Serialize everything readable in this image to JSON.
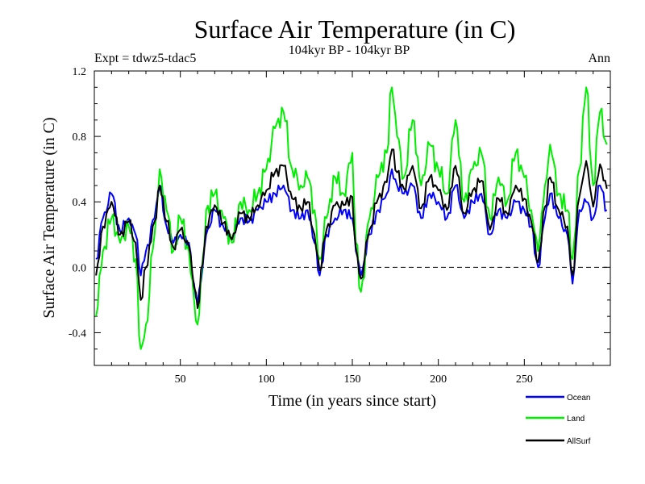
{
  "chart_data": {
    "type": "line",
    "title": "Surface Air Temperature (in C)",
    "subtitle": "104kyr BP - 104kyr BP",
    "expt_label": "Expt = tdwz5-tdac5",
    "season_label": "Ann",
    "xlabel": "Time (in years since start)",
    "ylabel": "Surface Air Temperature (in C)",
    "xlim": [
      0,
      300
    ],
    "ylim": [
      -0.6,
      1.2
    ],
    "xticks": [
      50,
      100,
      150,
      200,
      250
    ],
    "xtick_labels": [
      "50",
      "100",
      "150",
      "200",
      "250"
    ],
    "yticks": [
      -0.4,
      0.0,
      0.4,
      0.8,
      1.2
    ],
    "ytick_labels": [
      "-0.4",
      "0.0",
      "0.4",
      "0.8",
      "1.2"
    ],
    "reference_line": 0.0,
    "series": [
      {
        "name": "Ocean",
        "color": "#0000ff",
        "x": [
          1,
          5,
          10,
          15,
          20,
          24,
          27,
          30,
          35,
          38,
          42,
          46,
          50,
          55,
          58,
          60,
          63,
          65,
          70,
          75,
          80,
          85,
          90,
          95,
          100,
          105,
          110,
          115,
          120,
          124,
          128,
          131,
          135,
          140,
          145,
          150,
          152,
          155,
          160,
          165,
          170,
          173,
          176,
          180,
          185,
          190,
          195,
          200,
          205,
          210,
          215,
          220,
          225,
          230,
          235,
          240,
          245,
          250,
          254,
          258,
          262,
          265,
          270,
          275,
          278,
          282,
          286,
          290,
          294,
          298
        ],
        "values": [
          0.05,
          0.3,
          0.45,
          0.22,
          0.3,
          0.2,
          -0.05,
          0.1,
          0.3,
          0.5,
          0.25,
          0.15,
          0.2,
          0.15,
          -0.1,
          -0.22,
          0.0,
          0.2,
          0.35,
          0.25,
          0.18,
          0.3,
          0.28,
          0.35,
          0.4,
          0.45,
          0.5,
          0.35,
          0.3,
          0.35,
          0.15,
          -0.05,
          0.2,
          0.3,
          0.35,
          0.3,
          0.1,
          -0.05,
          0.2,
          0.35,
          0.45,
          0.6,
          0.5,
          0.45,
          0.5,
          0.3,
          0.45,
          0.4,
          0.3,
          0.5,
          0.3,
          0.4,
          0.45,
          0.2,
          0.35,
          0.3,
          0.4,
          0.35,
          0.25,
          0.0,
          0.3,
          0.45,
          0.3,
          0.2,
          -0.1,
          0.35,
          0.4,
          0.3,
          0.5,
          0.35
        ]
      },
      {
        "name": "Land",
        "color": "#00ee00",
        "x": [
          1,
          5,
          10,
          15,
          20,
          24,
          27,
          30,
          35,
          38,
          42,
          46,
          50,
          55,
          58,
          60,
          63,
          65,
          70,
          75,
          80,
          85,
          90,
          95,
          100,
          105,
          110,
          115,
          120,
          124,
          128,
          131,
          135,
          140,
          145,
          150,
          152,
          155,
          160,
          165,
          170,
          173,
          176,
          180,
          185,
          190,
          195,
          200,
          205,
          210,
          215,
          220,
          225,
          230,
          235,
          240,
          245,
          250,
          254,
          258,
          262,
          265,
          270,
          275,
          278,
          282,
          286,
          290,
          294,
          298
        ],
        "values": [
          -0.3,
          0.1,
          0.3,
          0.15,
          0.25,
          0.05,
          -0.5,
          -0.35,
          0.2,
          0.6,
          0.35,
          0.1,
          0.3,
          0.1,
          -0.2,
          -0.35,
          0.05,
          0.35,
          0.45,
          0.3,
          0.15,
          0.4,
          0.35,
          0.45,
          0.6,
          0.85,
          0.95,
          0.6,
          0.5,
          0.55,
          0.35,
          0.05,
          0.3,
          0.55,
          0.45,
          0.7,
          0.15,
          -0.15,
          0.3,
          0.55,
          0.7,
          1.1,
          0.8,
          0.55,
          0.9,
          0.5,
          0.75,
          0.6,
          0.45,
          0.9,
          0.4,
          0.6,
          0.7,
          0.3,
          0.55,
          0.4,
          0.7,
          0.55,
          0.35,
          0.1,
          0.5,
          0.75,
          0.45,
          0.35,
          0.05,
          0.6,
          1.1,
          0.5,
          0.95,
          0.75
        ]
      },
      {
        "name": "AllSurf",
        "color": "#000000",
        "x": [
          1,
          5,
          10,
          15,
          20,
          24,
          27,
          30,
          35,
          38,
          42,
          46,
          50,
          55,
          58,
          60,
          63,
          65,
          70,
          75,
          80,
          85,
          90,
          95,
          100,
          105,
          110,
          115,
          120,
          124,
          128,
          131,
          135,
          140,
          145,
          150,
          152,
          155,
          160,
          165,
          170,
          173,
          176,
          180,
          185,
          190,
          195,
          200,
          205,
          210,
          215,
          220,
          225,
          230,
          235,
          240,
          245,
          250,
          254,
          258,
          262,
          265,
          270,
          275,
          278,
          282,
          286,
          290,
          294,
          298
        ],
        "values": [
          -0.05,
          0.25,
          0.4,
          0.2,
          0.28,
          0.15,
          -0.2,
          0.0,
          0.28,
          0.5,
          0.28,
          0.12,
          0.23,
          0.13,
          -0.12,
          -0.25,
          0.02,
          0.25,
          0.38,
          0.27,
          0.17,
          0.33,
          0.3,
          0.38,
          0.47,
          0.58,
          0.62,
          0.42,
          0.36,
          0.4,
          0.2,
          -0.02,
          0.23,
          0.38,
          0.38,
          0.43,
          0.12,
          -0.07,
          0.23,
          0.42,
          0.52,
          0.72,
          0.58,
          0.48,
          0.62,
          0.36,
          0.55,
          0.47,
          0.35,
          0.62,
          0.33,
          0.47,
          0.53,
          0.23,
          0.42,
          0.33,
          0.5,
          0.42,
          0.28,
          0.03,
          0.37,
          0.55,
          0.35,
          0.25,
          -0.05,
          0.43,
          0.65,
          0.37,
          0.63,
          0.48
        ]
      }
    ]
  }
}
